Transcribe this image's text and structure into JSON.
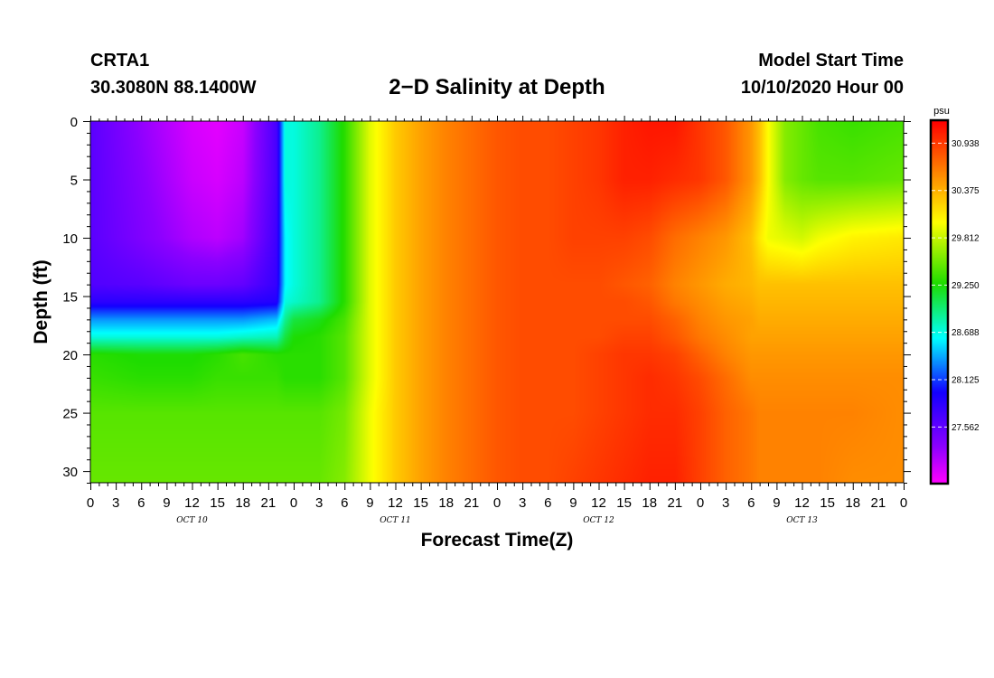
{
  "header": {
    "station": "CRTA1",
    "coords": "30.3080N 88.1400W",
    "title": "2−D Salinity at Depth",
    "model_start_label": "Model Start Time",
    "model_start_value": "10/10/2020 Hour 00"
  },
  "chart_data": {
    "type": "heatmap",
    "title": "2−D Salinity at Depth",
    "xlabel": "Forecast Time(Z)",
    "ylabel": "Depth (ft)",
    "ylim": [
      0,
      31
    ],
    "yticks": [
      0,
      5,
      10,
      15,
      20,
      25,
      30
    ],
    "xlim_hours": [
      0,
      96
    ],
    "xtick_labels": [
      "0",
      "3",
      "6",
      "9",
      "12",
      "15",
      "18",
      "21",
      "0",
      "3",
      "6",
      "9",
      "12",
      "15",
      "18",
      "21",
      "0",
      "3",
      "6",
      "9",
      "12",
      "15",
      "18",
      "21",
      "0",
      "3",
      "6",
      "9",
      "12",
      "15",
      "18",
      "21",
      "0"
    ],
    "day_labels": [
      "OCT 10",
      "OCT 11",
      "OCT 12",
      "OCT 13"
    ],
    "colorbar": {
      "unit": "psu",
      "min": 26.9,
      "max": 31.2,
      "tick_values": [
        30.938,
        30.375,
        29.812,
        29.25,
        28.688,
        28.125,
        27.562
      ],
      "tick_labels": [
        "30.938",
        "30.375",
        "29.812",
        "29.250",
        "28.688",
        "28.125",
        "27.562"
      ]
    },
    "time_hours": [
      0,
      6,
      12,
      15,
      18,
      22,
      23,
      24,
      27,
      30,
      33,
      36,
      39,
      42,
      45,
      48,
      51,
      54,
      57,
      60,
      63,
      66,
      69,
      72,
      75,
      78,
      79,
      80,
      82,
      84,
      86,
      90,
      96
    ],
    "depth_ft": [
      0,
      5,
      10,
      14,
      15.5,
      17,
      18.5,
      20,
      22,
      25,
      31
    ],
    "salinity_psu": [
      [
        27.6,
        27.3,
        27.05,
        27.0,
        27.1,
        27.7,
        28.7,
        28.7,
        28.9,
        29.3,
        29.9,
        30.25,
        30.45,
        30.6,
        30.7,
        30.8,
        30.85,
        30.85,
        30.9,
        30.95,
        31.05,
        31.1,
        31.1,
        30.95,
        30.8,
        30.5,
        30.3,
        30.0,
        29.6,
        29.5,
        29.4,
        29.35,
        29.4
      ],
      [
        27.6,
        27.35,
        27.1,
        27.05,
        27.15,
        27.7,
        28.7,
        28.7,
        28.9,
        29.3,
        29.9,
        30.25,
        30.45,
        30.6,
        30.7,
        30.8,
        30.85,
        30.85,
        30.9,
        30.95,
        31.05,
        31.05,
        31.0,
        30.95,
        30.8,
        30.5,
        30.3,
        30.0,
        29.6,
        29.5,
        29.45,
        29.45,
        29.5
      ],
      [
        27.6,
        27.4,
        27.2,
        27.15,
        27.25,
        27.75,
        28.6,
        28.7,
        28.9,
        29.3,
        29.9,
        30.25,
        30.45,
        30.6,
        30.7,
        30.8,
        30.85,
        30.85,
        30.9,
        30.9,
        30.9,
        30.85,
        30.7,
        30.6,
        30.5,
        30.3,
        30.1,
        29.95,
        29.9,
        29.85,
        29.95,
        30.05,
        30.1
      ],
      [
        27.65,
        27.6,
        27.5,
        27.5,
        27.55,
        27.8,
        28.6,
        28.7,
        28.9,
        29.3,
        29.9,
        30.25,
        30.45,
        30.6,
        30.7,
        30.8,
        30.85,
        30.85,
        30.85,
        30.85,
        30.8,
        30.75,
        30.6,
        30.5,
        30.4,
        30.35,
        30.3,
        30.3,
        30.3,
        30.3,
        30.3,
        30.3,
        30.3
      ],
      [
        27.85,
        27.85,
        27.85,
        27.85,
        27.85,
        27.9,
        28.7,
        28.75,
        28.9,
        29.3,
        29.9,
        30.25,
        30.45,
        30.6,
        30.7,
        30.8,
        30.85,
        30.85,
        30.85,
        30.85,
        30.85,
        30.8,
        30.65,
        30.55,
        30.45,
        30.4,
        30.35,
        30.35,
        30.35,
        30.35,
        30.35,
        30.35,
        30.35
      ],
      [
        28.35,
        28.35,
        28.35,
        28.35,
        28.35,
        28.45,
        28.9,
        29.1,
        29.2,
        29.4,
        29.9,
        30.25,
        30.45,
        30.6,
        30.7,
        30.8,
        30.85,
        30.85,
        30.85,
        30.85,
        30.85,
        30.85,
        30.75,
        30.6,
        30.5,
        30.45,
        30.4,
        30.4,
        30.4,
        30.4,
        30.4,
        30.4,
        30.4
      ],
      [
        28.7,
        28.7,
        28.7,
        28.7,
        28.75,
        28.8,
        29.1,
        29.25,
        29.3,
        29.45,
        29.9,
        30.25,
        30.45,
        30.6,
        30.7,
        30.8,
        30.85,
        30.85,
        30.85,
        30.85,
        30.9,
        30.9,
        30.8,
        30.65,
        30.55,
        30.45,
        30.45,
        30.45,
        30.45,
        30.45,
        30.45,
        30.45,
        30.45
      ],
      [
        29.3,
        29.25,
        29.25,
        29.3,
        29.4,
        29.3,
        29.3,
        29.3,
        29.3,
        29.45,
        29.9,
        30.25,
        30.45,
        30.6,
        30.7,
        30.8,
        30.85,
        30.85,
        30.85,
        30.9,
        30.95,
        30.95,
        30.9,
        30.75,
        30.6,
        30.5,
        30.5,
        30.5,
        30.5,
        30.5,
        30.5,
        30.5,
        30.5
      ],
      [
        29.35,
        29.3,
        29.3,
        29.35,
        29.35,
        29.35,
        29.3,
        29.3,
        29.3,
        29.45,
        29.9,
        30.25,
        30.45,
        30.6,
        30.7,
        30.8,
        30.85,
        30.85,
        30.85,
        30.9,
        30.95,
        31.0,
        30.95,
        30.85,
        30.7,
        30.55,
        30.55,
        30.55,
        30.55,
        30.55,
        30.55,
        30.55,
        30.55
      ],
      [
        29.45,
        29.45,
        29.45,
        29.45,
        29.45,
        29.45,
        29.45,
        29.45,
        29.45,
        29.55,
        29.95,
        30.25,
        30.45,
        30.6,
        30.7,
        30.8,
        30.85,
        30.85,
        30.85,
        30.9,
        30.95,
        31.0,
        31.0,
        30.9,
        30.75,
        30.65,
        30.6,
        30.6,
        30.6,
        30.6,
        30.6,
        30.6,
        30.55
      ],
      [
        29.5,
        29.5,
        29.5,
        29.5,
        29.5,
        29.5,
        29.5,
        29.5,
        29.5,
        29.6,
        29.95,
        30.25,
        30.45,
        30.6,
        30.7,
        30.8,
        30.85,
        30.85,
        30.9,
        30.95,
        31.0,
        31.05,
        31.05,
        30.9,
        30.75,
        30.65,
        30.6,
        30.6,
        30.6,
        30.6,
        30.6,
        30.55,
        30.55
      ]
    ]
  }
}
